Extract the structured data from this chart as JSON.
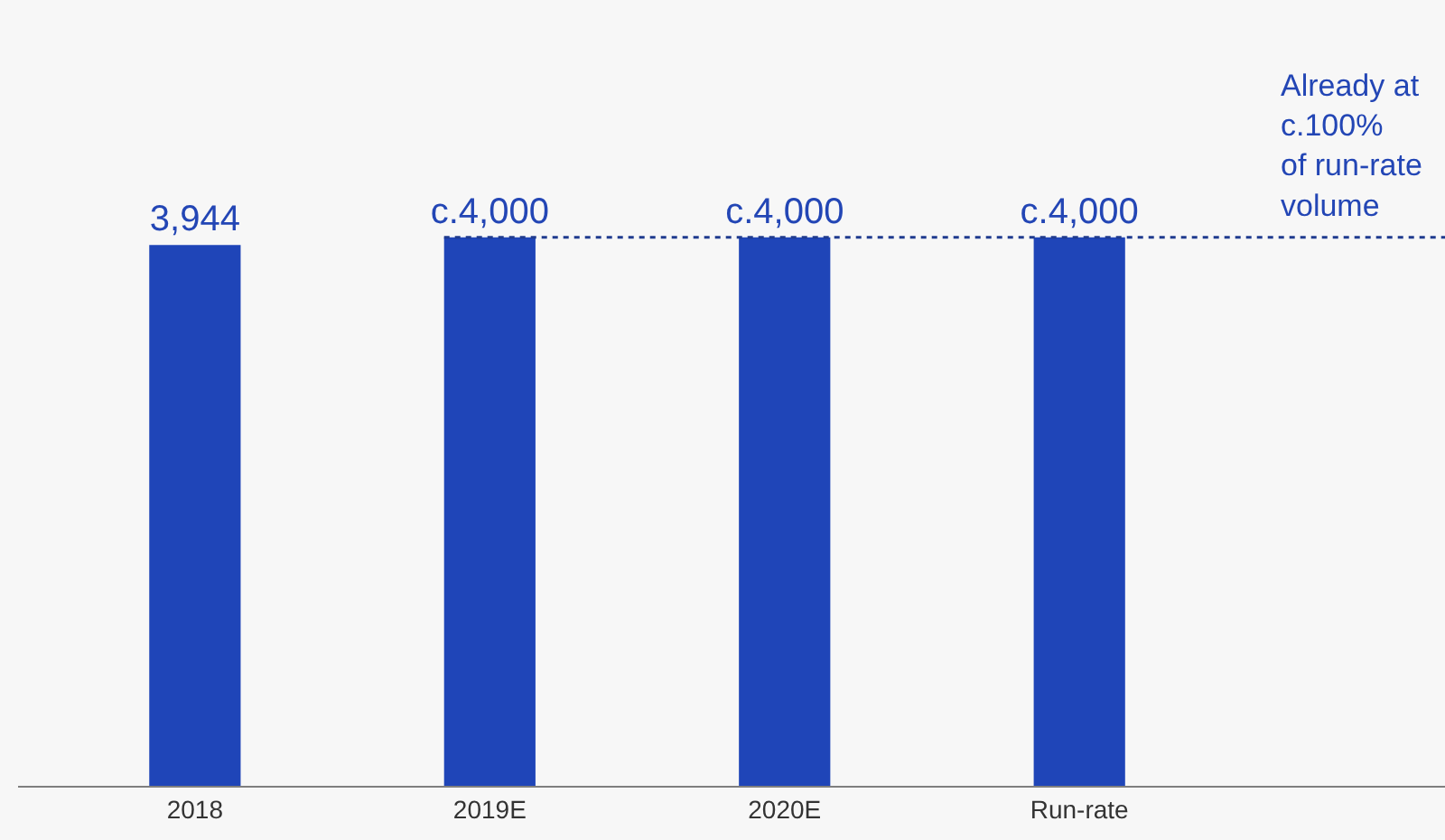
{
  "chart_data": {
    "type": "bar",
    "categories": [
      "2018",
      "2019E",
      "2020E",
      "Run-rate"
    ],
    "values": [
      3944,
      4000,
      4000,
      4000
    ],
    "value_labels": [
      "3,944",
      "c.4,000",
      "c.4,000",
      "c.4,000"
    ],
    "color": "#1f45b8",
    "tick_labels": "x",
    "ref_lines": [
      {
        "axis": "y",
        "value": 4000,
        "label": "Already at\nc.100%\nof run-rate\nvolume",
        "line_style": "dotted",
        "color": "#1f3b8f"
      }
    ]
  }
}
